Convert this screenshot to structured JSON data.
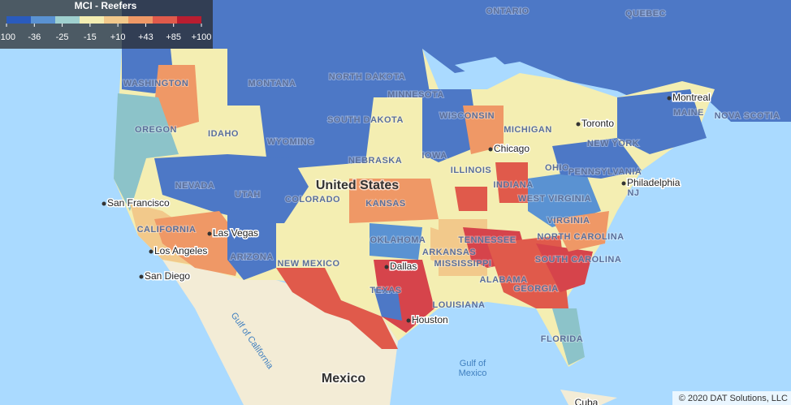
{
  "legend": {
    "title": "MCI - Reefers",
    "ticks": [
      -100,
      -36,
      -25,
      -15,
      {
        "value": 10,
        "label": "+10"
      },
      {
        "value": 43,
        "label": "+43"
      },
      {
        "value": 85,
        "label": "+85"
      },
      {
        "value": 100,
        "label": "+100"
      }
    ],
    "colors": [
      "#2a5bbd",
      "#5a92d2",
      "#9fd0cf",
      "#f4eeb2",
      "#f2c98b",
      "#ef9866",
      "#e05a4b",
      "#b91d30"
    ]
  },
  "places": [
    {
      "label": "ONTARIO"
    },
    {
      "label": "QUEBEC"
    },
    {
      "label": "WASHINGTON"
    },
    {
      "label": "MONTANA"
    },
    {
      "label": "NORTH DAKOTA"
    },
    {
      "label": "MINNESOTA"
    },
    {
      "label": "OREGON"
    },
    {
      "label": "IDAHO"
    },
    {
      "label": "WYOMING"
    },
    {
      "label": "SOUTH DAKOTA"
    },
    {
      "label": "WISCONSIN"
    },
    {
      "label": "MICHIGAN"
    },
    {
      "label": "MAINE"
    },
    {
      "label": "NOVA SCOTIA"
    },
    {
      "label": "NEW YORK"
    },
    {
      "label": "NEBRASKA"
    },
    {
      "label": "IOWA"
    },
    {
      "label": "NEVADA"
    },
    {
      "label": "UTAH"
    },
    {
      "label": "COLORADO"
    },
    {
      "label": "KANSAS"
    },
    {
      "label": "ILLINOIS"
    },
    {
      "label": "INDIANA"
    },
    {
      "label": "OHIO"
    },
    {
      "label": "PENNSYLVANIA"
    },
    {
      "label": "NJ"
    },
    {
      "label": "CALIFORNIA"
    },
    {
      "label": "ARIZONA"
    },
    {
      "label": "NEW MEXICO"
    },
    {
      "label": "OKLAHOMA"
    },
    {
      "label": "ARKANSAS"
    },
    {
      "label": "TENNESSEE"
    },
    {
      "label": "WEST VIRGINIA"
    },
    {
      "label": "VIRGINIA"
    },
    {
      "label": "NORTH CAROLINA"
    },
    {
      "label": "SOUTH CAROLINA"
    },
    {
      "label": "MISSISSIPPI"
    },
    {
      "label": "ALABAMA"
    },
    {
      "label": "GEORGIA"
    },
    {
      "label": "TEXAS"
    },
    {
      "label": "LOUISIANA"
    },
    {
      "label": "FLORIDA"
    }
  ],
  "cities": [
    {
      "label": "Toronto"
    },
    {
      "label": "Montreal"
    },
    {
      "label": "Chicago"
    },
    {
      "label": "Philadelphia"
    },
    {
      "label": "San Francisco"
    },
    {
      "label": "Las Vegas"
    },
    {
      "label": "Los Angeles"
    },
    {
      "label": "San Diego"
    },
    {
      "label": "Dallas"
    },
    {
      "label": "Houston"
    }
  ],
  "country": "United States",
  "mexico": "Mexico",
  "cuba": "Cuba",
  "waters": [
    {
      "label": "Gulf of California"
    },
    {
      "label": "Gulf of Mexico"
    }
  ],
  "copyright": "© 2020 DAT Solutions, LLC"
}
